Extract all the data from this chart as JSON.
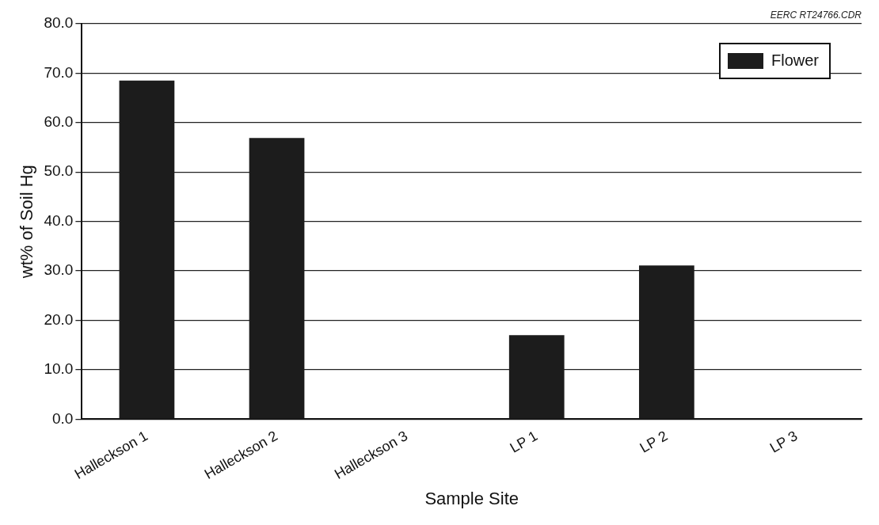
{
  "chart_data": {
    "type": "bar",
    "xlabel": "Sample Site",
    "ylabel": "wt% of Soil Hg",
    "categories": [
      "Halleckson 1",
      "Halleckson 2",
      "Halleckson 3",
      "LP 1",
      "LP 2",
      "LP 3"
    ],
    "series": [
      {
        "name": "Flower",
        "color": "#1c1c1c",
        "values": [
          68.5,
          56.9,
          0,
          17.0,
          31.1,
          0
        ]
      }
    ],
    "ylim": [
      0,
      80
    ],
    "yticks": [
      {
        "value": 0,
        "label": "0.0"
      },
      {
        "value": 10,
        "label": "10.0"
      },
      {
        "value": 20,
        "label": "20.0"
      },
      {
        "value": 30,
        "label": "30.0"
      },
      {
        "value": 40,
        "label": "40.0"
      },
      {
        "value": 50,
        "label": "50.0"
      },
      {
        "value": 60,
        "label": "60.0"
      },
      {
        "value": 70,
        "label": "70.0"
      },
      {
        "value": 80,
        "label": "80.0"
      }
    ],
    "grid": "y",
    "legend": "top right",
    "annotations": [
      "EERC RT24766.CDR"
    ]
  }
}
